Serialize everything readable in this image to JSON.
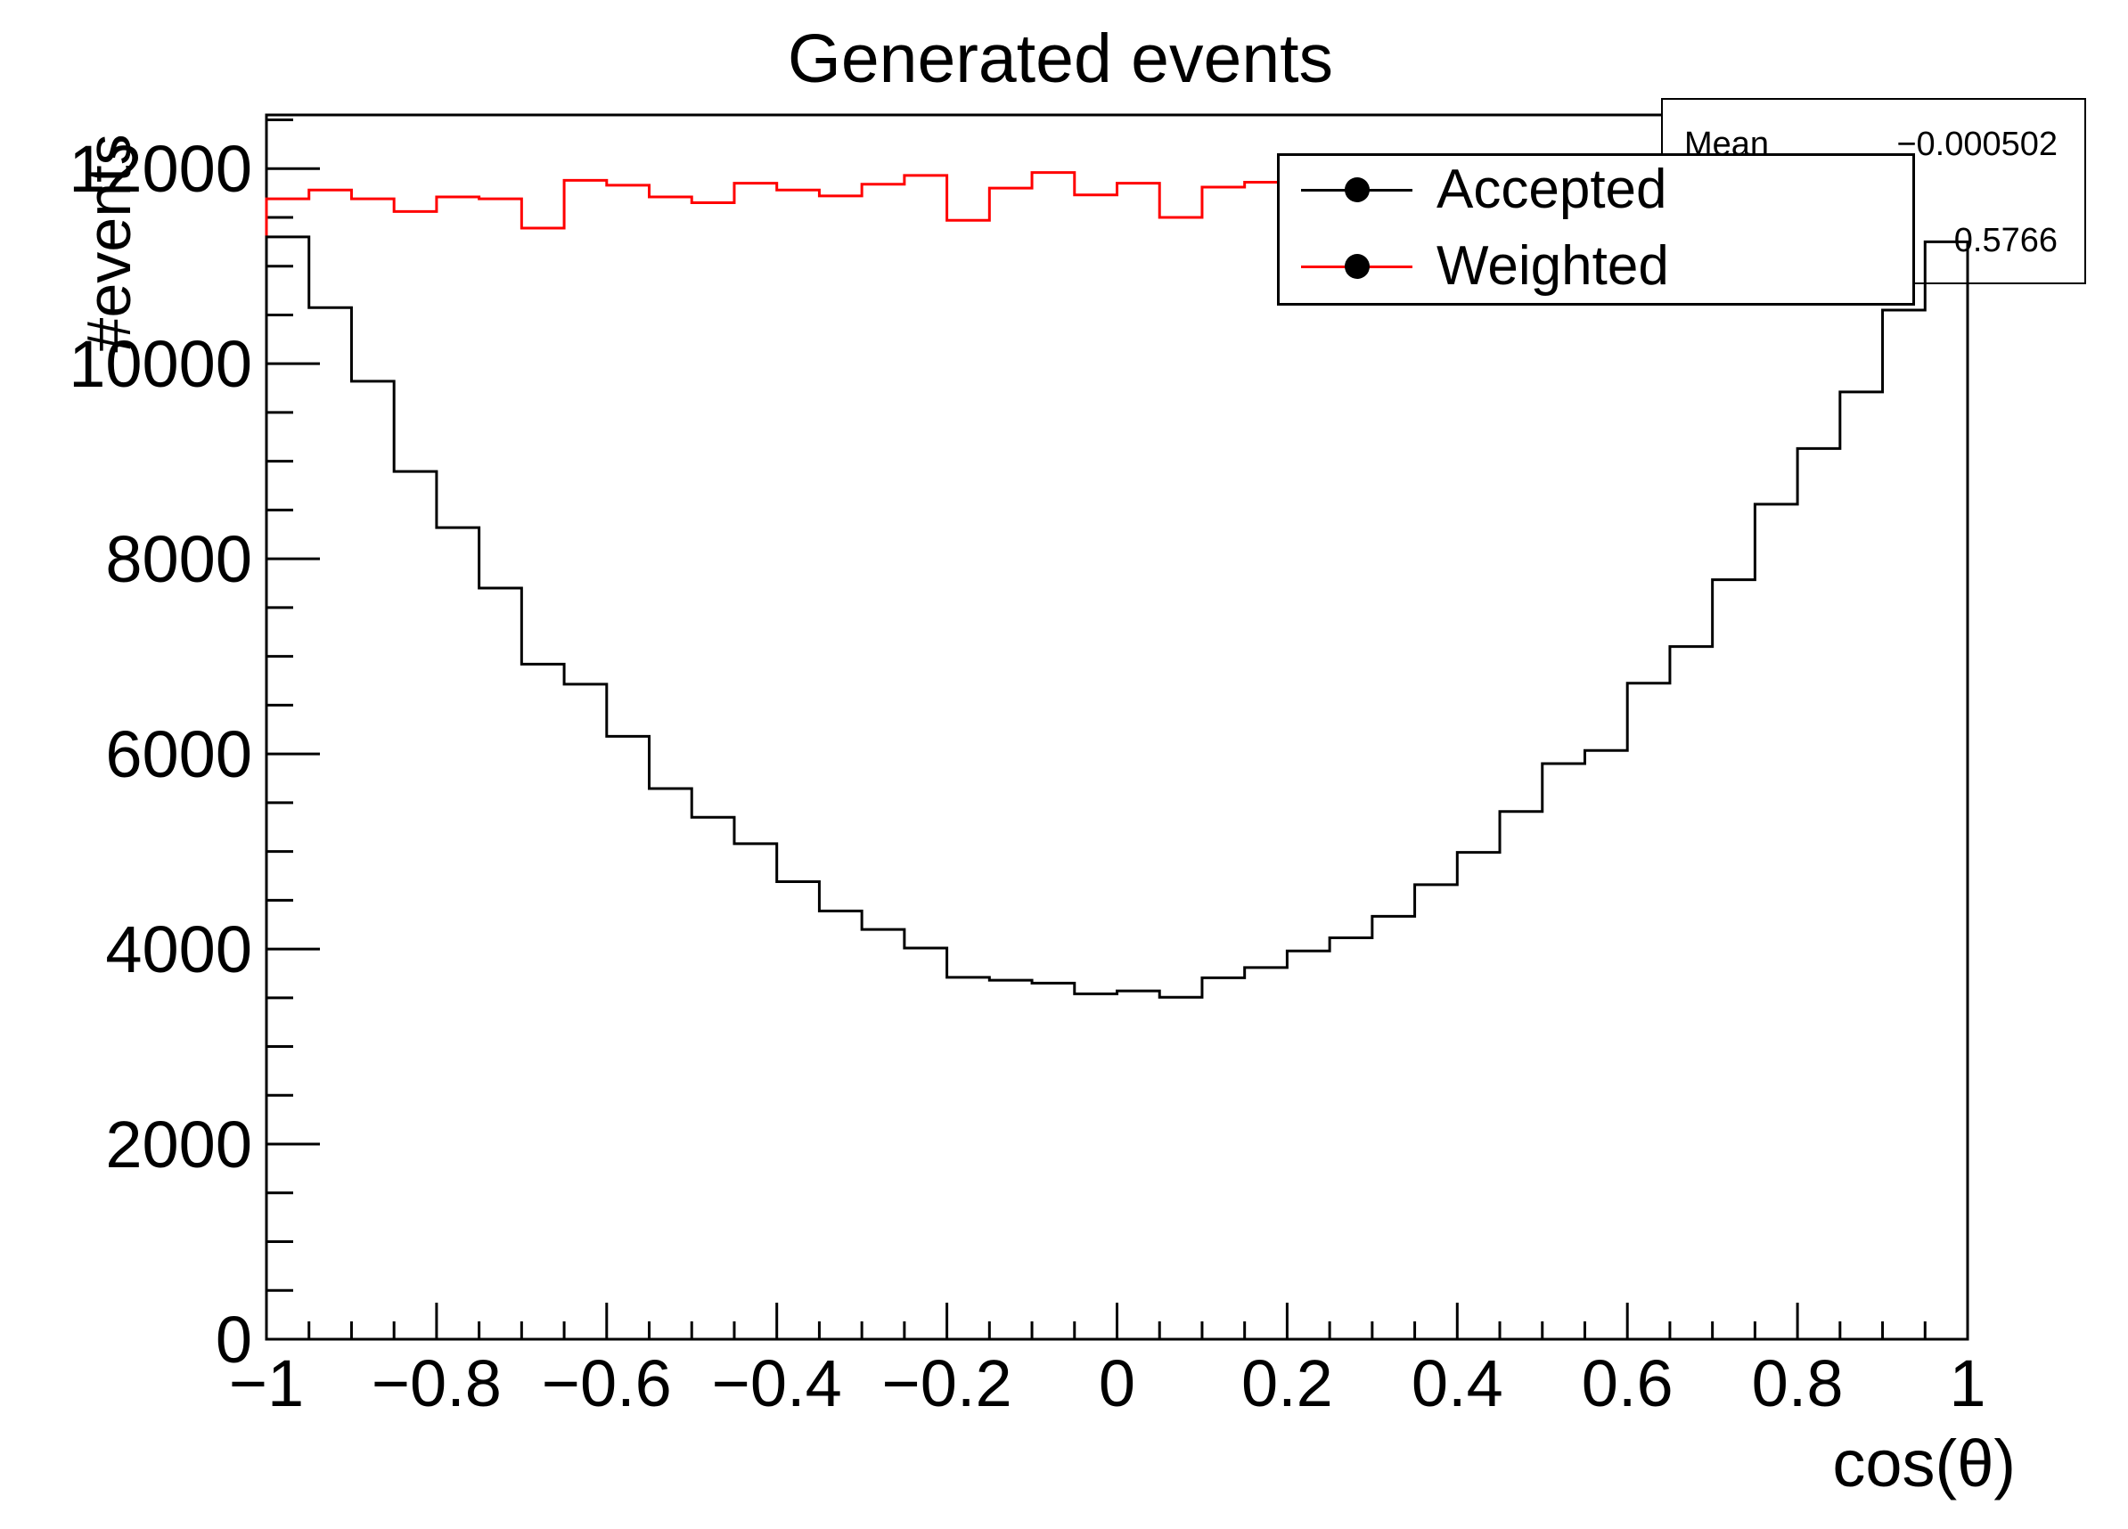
{
  "title": "Generated events",
  "axes": {
    "x": {
      "title": "cos(θ)",
      "min": -1,
      "max": 1,
      "major_ticks": [
        -1,
        -0.8,
        -0.6,
        -0.4,
        -0.2,
        0,
        0.2,
        0.4,
        0.6,
        0.8,
        1
      ],
      "major_labels": [
        "−1",
        "−0.8",
        "−0.6",
        "−0.4",
        "−0.2",
        "0",
        "0.2",
        "0.4",
        "0.6",
        "0.8",
        "1"
      ],
      "minor_step": 0.05
    },
    "y": {
      "title": "#events",
      "min": 0,
      "max": 12550,
      "major_ticks": [
        0,
        2000,
        4000,
        6000,
        8000,
        10000,
        12000
      ],
      "major_labels": [
        "0",
        "2000",
        "4000",
        "6000",
        "8000",
        "10000",
        "12000"
      ],
      "minor_step": 500
    }
  },
  "legend": {
    "entries": [
      {
        "label": "Accepted",
        "color": "#000000",
        "marker": "filled-circle"
      },
      {
        "label": "Weighted",
        "color": "#ff0000",
        "marker": "filled-circle"
      }
    ]
  },
  "stats": {
    "rows": [
      {
        "label": "Mean",
        "value": "−0.000502"
      },
      {
        "label": "",
        "value": "0.5766"
      }
    ]
  },
  "chart_data": {
    "type": "line",
    "style": "step-histogram",
    "title": "Generated events",
    "xlabel": "cos(θ)",
    "ylabel": "#events",
    "xlim": [
      -1,
      1
    ],
    "ylim": [
      0,
      12550
    ],
    "n_bins": 40,
    "bin_width": 0.05,
    "grid": false,
    "legend_position": "top-right",
    "series": [
      {
        "name": "Accepted",
        "color": "#000000",
        "values": [
          11300,
          10575,
          9820,
          8895,
          8320,
          7700,
          6920,
          6715,
          6180,
          5645,
          5350,
          5080,
          4690,
          4390,
          4200,
          4010,
          3710,
          3680,
          3650,
          3540,
          3570,
          3505,
          3705,
          3810,
          3980,
          4115,
          4335,
          4660,
          4990,
          5410,
          5900,
          6035,
          6725,
          7100,
          7785,
          8560,
          9130,
          9710,
          10550,
          11250
        ]
      },
      {
        "name": "Weighted",
        "color": "#ff0000",
        "values": [
          11690,
          11780,
          11690,
          11560,
          11710,
          11690,
          11390,
          11880,
          11830,
          11710,
          11650,
          11850,
          11780,
          11720,
          11840,
          11930,
          11470,
          11800,
          11960,
          11730,
          11850,
          11500,
          11810,
          11860,
          11700,
          11700,
          11700,
          11700,
          11700,
          11700,
          11700,
          11700,
          11700,
          11700,
          11700,
          11700,
          11700,
          11700,
          11700,
          11700
        ]
      }
    ]
  }
}
